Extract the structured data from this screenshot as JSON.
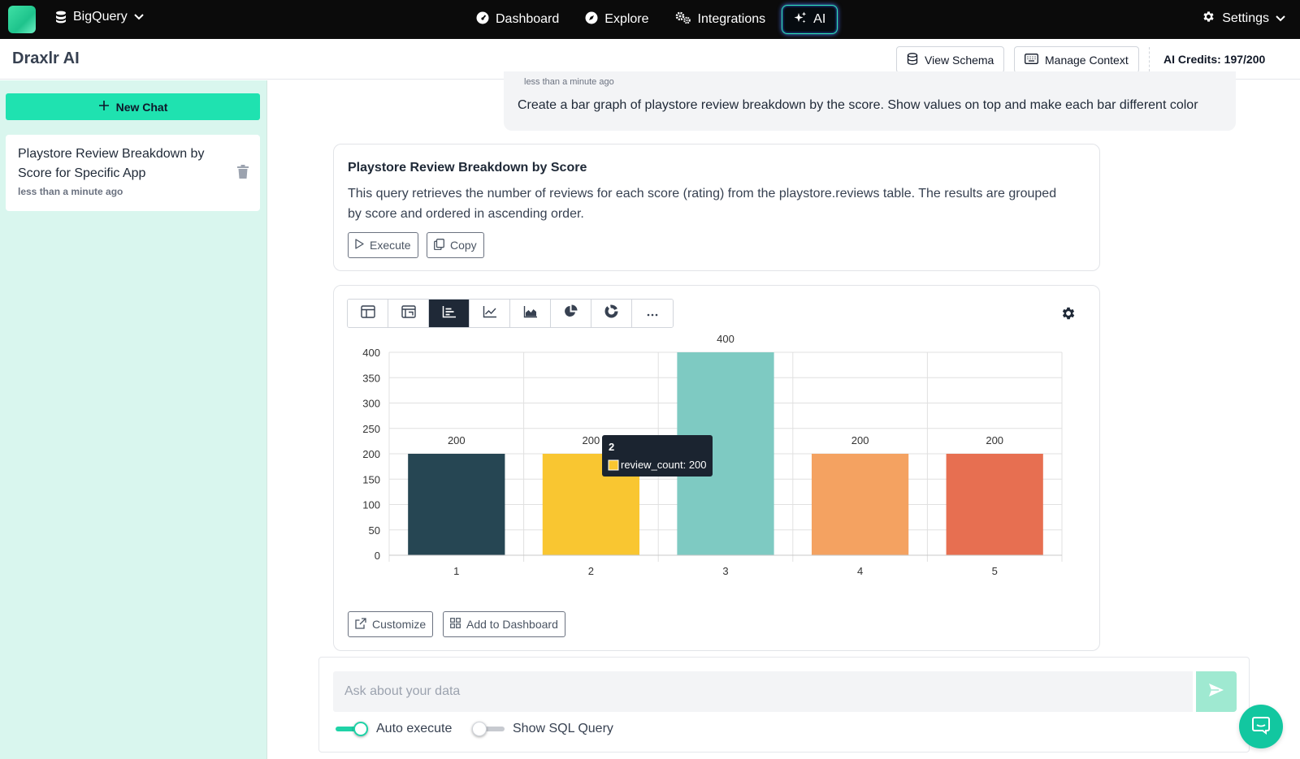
{
  "topnav": {
    "source_label": "BigQuery",
    "nav_items": [
      {
        "label": "Dashboard",
        "icon": "gauge-icon"
      },
      {
        "label": "Explore",
        "icon": "compass-icon"
      },
      {
        "label": "Integrations",
        "icon": "gears-icon"
      },
      {
        "label": "AI",
        "icon": "sparkles-icon",
        "active": true
      }
    ],
    "settings_label": "Settings"
  },
  "header": {
    "title": "Draxlr AI",
    "view_schema_label": "View Schema",
    "manage_context_label": "Manage Context",
    "credits_text": "AI Credits: 197/200"
  },
  "sidebar": {
    "new_chat_label": "New Chat",
    "chats": [
      {
        "title": "Playstore Review Breakdown by Score for Specific App",
        "time": "less than a minute ago"
      }
    ]
  },
  "conversation": {
    "user_message": {
      "time": "less than a minute ago",
      "text": "Create a bar graph of playstore review breakdown by the score. Show values on top and make each bar different color"
    },
    "query_card": {
      "title": "Playstore Review Breakdown by Score",
      "description": "This query retrieves the number of reviews for each score (rating) from the playstore.reviews table. The results are grouped by score and ordered in ascending order.",
      "execute_label": "Execute",
      "copy_label": "Copy"
    },
    "chart_card": {
      "toolbar_icons": [
        "table-icon",
        "pivot-table-icon",
        "bar-chart-icon",
        "line-chart-icon",
        "area-chart-icon",
        "pie-chart-icon",
        "donut-chart-icon",
        "more-icon"
      ],
      "active_tool": "bar-chart-icon",
      "customize_label": "Customize",
      "add_dashboard_label": "Add to Dashboard",
      "tooltip": {
        "title": "2",
        "label": "review_count: 200"
      }
    }
  },
  "chart_data": {
    "type": "bar",
    "categories": [
      "1",
      "2",
      "3",
      "4",
      "5"
    ],
    "series": [
      {
        "name": "review_count",
        "values": [
          200,
          200,
          400,
          200,
          200
        ]
      }
    ],
    "colors": [
      "#264653",
      "#f9c631",
      "#7ecac2",
      "#f4a261",
      "#e76f51"
    ],
    "ylim": [
      0,
      400
    ],
    "yticks": [
      0,
      50,
      100,
      150,
      200,
      250,
      300,
      350,
      400
    ],
    "grid": true,
    "show_values": true
  },
  "input": {
    "placeholder": "Ask about your data",
    "auto_execute_label": "Auto execute",
    "auto_execute_on": true,
    "show_sql_label": "Show SQL Query",
    "show_sql_on": false
  },
  "colors": {
    "accent": "#1fe2b0",
    "sidebar_bg": "#d9f6ee",
    "topbar_bg": "#0b0b0b"
  }
}
